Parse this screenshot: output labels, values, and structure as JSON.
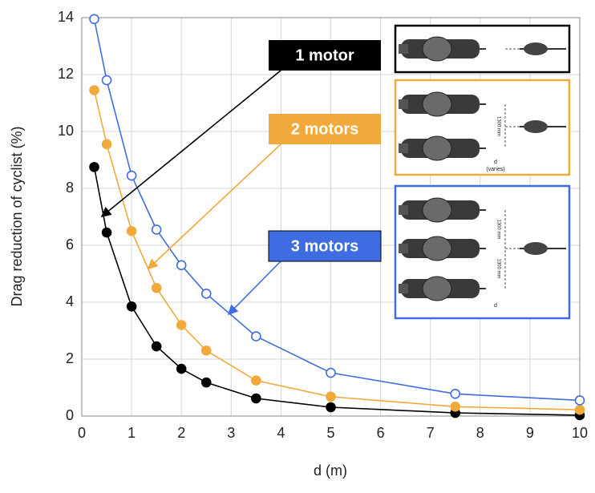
{
  "chart_data": {
    "type": "line",
    "x_label": "d (m)",
    "y_label": "Drag reduction of cyclist (%)",
    "x": [
      0.25,
      0.5,
      1,
      1.5,
      2,
      2.5,
      3.5,
      5,
      7.5,
      10
    ],
    "series": [
      {
        "name": "1 motor",
        "color": "#000000",
        "marker_fill": "#000000",
        "values": [
          8.75,
          6.45,
          3.85,
          2.45,
          1.66,
          1.18,
          0.62,
          0.31,
          0.11,
          0.03
        ]
      },
      {
        "name": "2 motors",
        "color": "#f2a93b",
        "marker_fill": "#f2a93b",
        "values": [
          11.45,
          9.55,
          6.5,
          4.5,
          3.2,
          2.3,
          1.25,
          0.68,
          0.33,
          0.22
        ]
      },
      {
        "name": "3 motors",
        "color": "#3f6ce0",
        "marker_fill": "#ffffff",
        "values": [
          13.95,
          11.8,
          8.45,
          6.55,
          5.3,
          4.3,
          2.8,
          1.52,
          0.78,
          0.55
        ]
      }
    ],
    "xlim": [
      0,
      10
    ],
    "xticks": [
      0,
      1,
      2,
      3,
      4,
      5,
      6,
      7,
      8,
      9,
      10
    ],
    "ylim": [
      0,
      14
    ],
    "yticks": [
      0,
      2,
      4,
      6,
      8,
      10,
      12,
      14
    ],
    "grid": true,
    "inset_labels": [
      "1300 mm",
      "d",
      "(varies)"
    ]
  }
}
